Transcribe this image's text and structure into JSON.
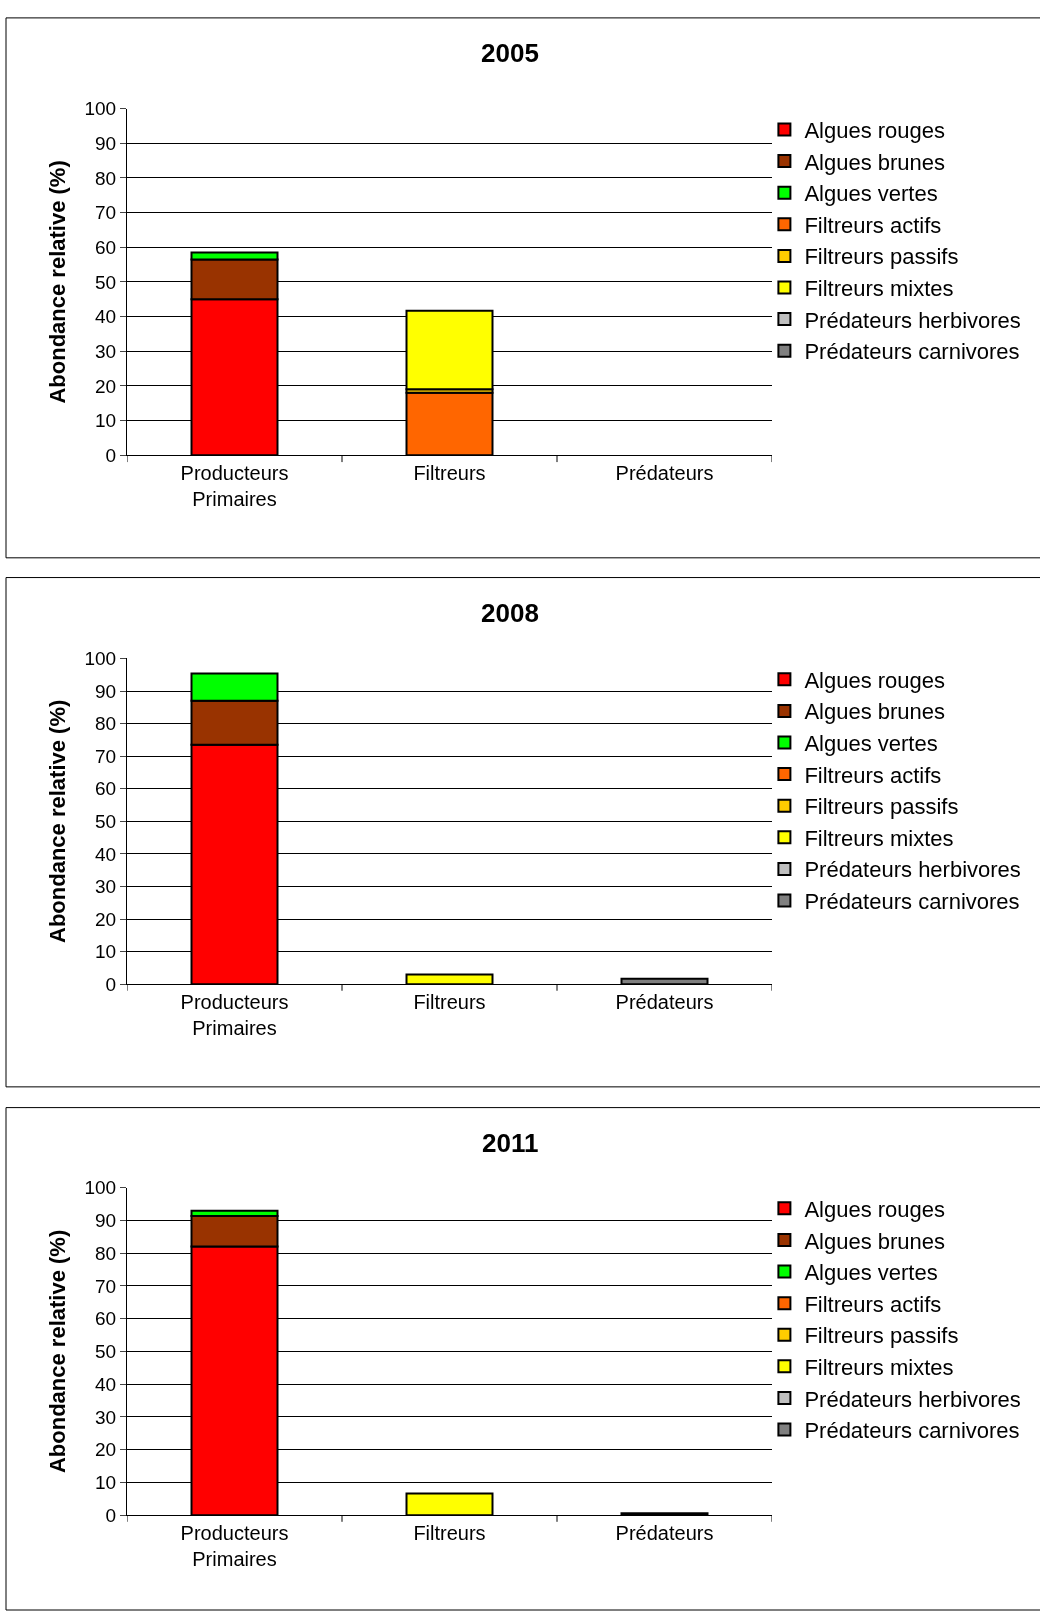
{
  "chart_data": [
    {
      "type": "bar",
      "title": "2005",
      "ylabel": "Abondance relative (%)",
      "stacked": true,
      "categories": [
        "Producteurs\nPrimaires",
        "Filtreurs",
        "Prédateurs"
      ],
      "ylim": [
        0,
        100
      ],
      "yticks": [
        0,
        10,
        20,
        30,
        40,
        50,
        60,
        70,
        80,
        90,
        100
      ],
      "grid": "y",
      "legend": "right",
      "series": [
        {
          "name": "Algues rouges",
          "color": "#ff0000",
          "values": [
            45,
            null,
            null
          ]
        },
        {
          "name": "Algues brunes",
          "color": "#993300",
          "values": [
            11.5,
            null,
            null
          ]
        },
        {
          "name": "Algues vertes",
          "color": "#00ff00",
          "values": [
            2,
            null,
            null
          ]
        },
        {
          "name": "Filtreurs actifs",
          "color": "#ff6600",
          "values": [
            null,
            18,
            null
          ]
        },
        {
          "name": "Filtreurs passifs",
          "color": "#ffcc00",
          "values": [
            null,
            1,
            null
          ]
        },
        {
          "name": "Filtreurs mixtes",
          "color": "#ffff00",
          "values": [
            null,
            22.7,
            null
          ]
        },
        {
          "name": "Prédateurs herbivores",
          "color": "#c0c0c0",
          "values": [
            null,
            null,
            null
          ]
        },
        {
          "name": "Prédateurs carnivores",
          "color": "#808080",
          "values": [
            null,
            null,
            null
          ]
        }
      ]
    },
    {
      "type": "bar",
      "title": "2008",
      "ylabel": "Abondance relative (%)",
      "stacked": true,
      "categories": [
        "Producteurs\nPrimaires",
        "Filtreurs",
        "Prédateurs"
      ],
      "ylim": [
        0,
        100
      ],
      "yticks": [
        0,
        10,
        20,
        30,
        40,
        50,
        60,
        70,
        80,
        90,
        100
      ],
      "grid": "y",
      "legend": "right",
      "series": [
        {
          "name": "Algues rouges",
          "color": "#ff0000",
          "values": [
            73.5,
            null,
            null
          ]
        },
        {
          "name": "Algues brunes",
          "color": "#993300",
          "values": [
            13.5,
            null,
            null
          ]
        },
        {
          "name": "Algues vertes",
          "color": "#00ff00",
          "values": [
            8.4,
            null,
            null
          ]
        },
        {
          "name": "Filtreurs actifs",
          "color": "#ff6600",
          "values": [
            null,
            null,
            null
          ]
        },
        {
          "name": "Filtreurs passifs",
          "color": "#ffcc00",
          "values": [
            null,
            null,
            null
          ]
        },
        {
          "name": "Filtreurs mixtes",
          "color": "#ffff00",
          "values": [
            null,
            3,
            null
          ]
        },
        {
          "name": "Prédateurs herbivores",
          "color": "#c0c0c0",
          "values": [
            null,
            null,
            null
          ]
        },
        {
          "name": "Prédateurs carnivores",
          "color": "#808080",
          "values": [
            null,
            null,
            1.7
          ]
        }
      ]
    },
    {
      "type": "bar",
      "title": "2011",
      "ylabel": "Abondance relative (%)",
      "stacked": true,
      "categories": [
        "Producteurs\nPrimaires",
        "Filtreurs",
        "Prédateurs"
      ],
      "ylim": [
        0,
        100
      ],
      "yticks": [
        0,
        10,
        20,
        30,
        40,
        50,
        60,
        70,
        80,
        90,
        100
      ],
      "grid": "y",
      "legend": "right",
      "series": [
        {
          "name": "Algues rouges",
          "color": "#ff0000",
          "values": [
            82,
            null,
            null
          ]
        },
        {
          "name": "Algues brunes",
          "color": "#993300",
          "values": [
            9.3,
            null,
            null
          ]
        },
        {
          "name": "Algues vertes",
          "color": "#00ff00",
          "values": [
            1.6,
            null,
            null
          ]
        },
        {
          "name": "Filtreurs actifs",
          "color": "#ff6600",
          "values": [
            null,
            null,
            null
          ]
        },
        {
          "name": "Filtreurs passifs",
          "color": "#ffcc00",
          "values": [
            null,
            null,
            null
          ]
        },
        {
          "name": "Filtreurs mixtes",
          "color": "#ffff00",
          "values": [
            null,
            6.6,
            null
          ]
        },
        {
          "name": "Prédateurs herbivores",
          "color": "#c0c0c0",
          "values": [
            null,
            null,
            null
          ]
        },
        {
          "name": "Prédateurs carnivores",
          "color": "#808080",
          "values": [
            null,
            null,
            0.6
          ]
        }
      ]
    }
  ]
}
